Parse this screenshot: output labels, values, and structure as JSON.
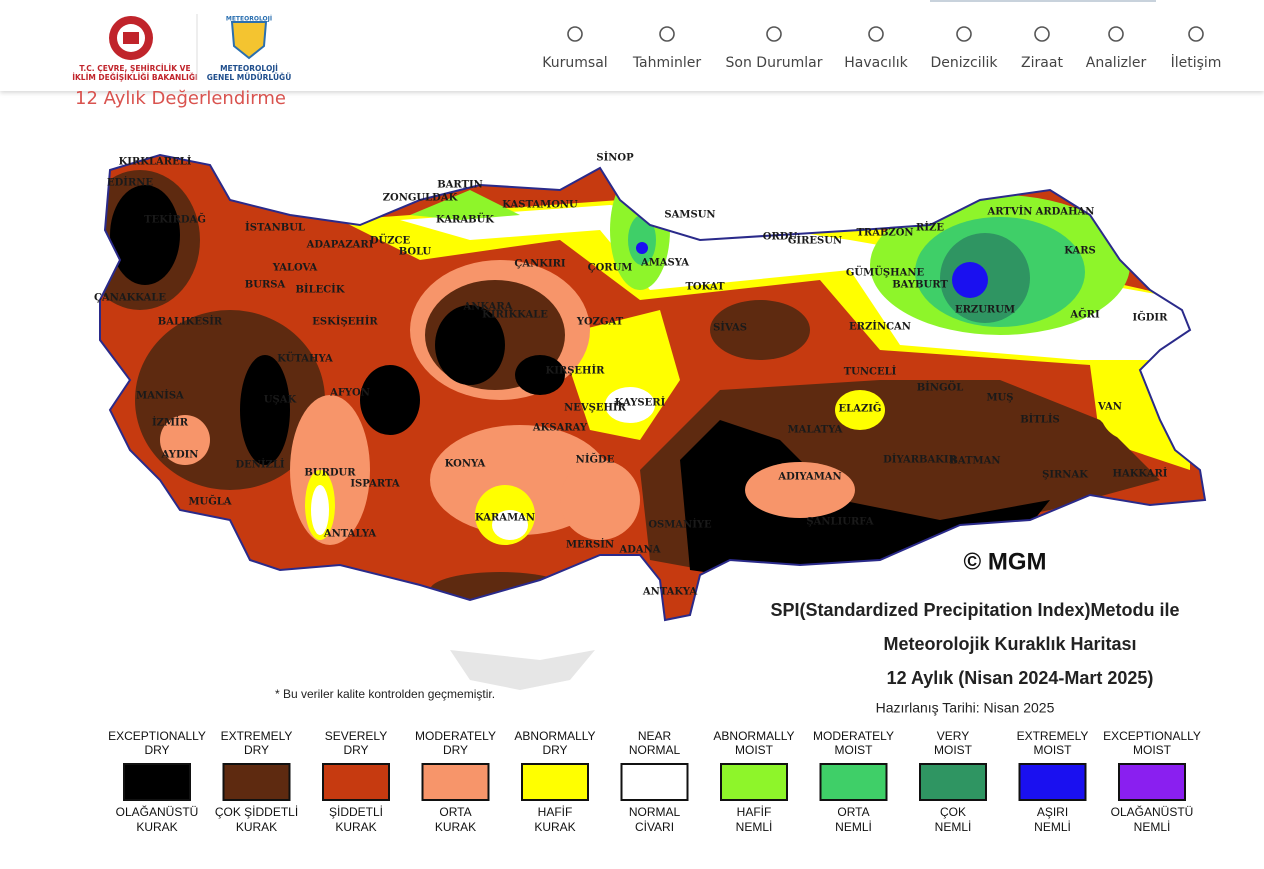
{
  "header": {
    "ministry": [
      "T.C. ÇEVRE, ŞEHİRCİLİK VE",
      "İKLİM DEĞİŞİKLİĞİ BAKANLIĞI"
    ],
    "mgm_logo": "METEOROLOJİ",
    "mgm": [
      "METEOROLOJİ",
      "GENEL MÜDÜRLÜĞÜ"
    ],
    "nav": [
      "Kurumsal",
      "Tahminler",
      "Son Durumlar",
      "Havacılık",
      "Denizcilik",
      "Ziraat",
      "Analizler",
      "İletişim"
    ]
  },
  "page_title": "12 Aylık Değerlendirme",
  "map": {
    "title": [
      "SPI(Standardized Precipitation Index)Metodu ile",
      "Meteorolojik Kuraklık Haritası",
      "12 Aylık (Nisan 2024-Mart 2025)"
    ],
    "date": "Hazırlanış Tarihi: Nisan 2025",
    "copyright": "© MGM",
    "note": "* Bu veriler kalite kontrolden geçmemiştir.",
    "cities": [
      "KIRKLARELİ",
      "EDİRNE",
      "TEKİRDAĞ",
      "İSTANBUL",
      "ZONGULDAK",
      "BARTIN",
      "KARABÜK",
      "KASTAMONU",
      "SİNOP",
      "SAMSUN",
      "ORDU",
      "GİRESUN",
      "TRABZON",
      "RİZE",
      "ARTVİN",
      "ARDAHAN",
      "KARS",
      "DÜZCE",
      "BOLU",
      "ADAPAZARI",
      "YALOVA",
      "BURSA",
      "BİLECİK",
      "ÇANAKKALE",
      "BALIKESİR",
      "ESKİŞEHİR",
      "ANKARA",
      "KIRIKKALE",
      "ÇANKIRI",
      "ÇORUM",
      "AMASYA",
      "TOKAT",
      "GÜMÜŞHANE",
      "BAYBURT",
      "ERZURUM",
      "AĞRI",
      "IĞDIR",
      "ERZİNCAN",
      "SİVAS",
      "YOZGAT",
      "KÜTAHYA",
      "MANİSA",
      "UŞAK",
      "AFYON",
      "KIRŞEHİR",
      "NEVŞEHİR",
      "KAYSERİ",
      "TUNCELİ",
      "BİNGÖL",
      "MUŞ",
      "ELAZIĞ",
      "VAN",
      "BİTLİS",
      "MALATYA",
      "İZMİR",
      "AKSARAY",
      "AYDIN",
      "DENİZLİ",
      "NİĞDE",
      "KONYA",
      "DİYARBAKIR",
      "BATMAN",
      "ŞIRNAK",
      "HAKKARİ",
      "ADIYAMAN",
      "BURDUR",
      "ISPARTA",
      "MUĞLA",
      "KARAMAN",
      "ANTALYA",
      "OSMANİYE",
      "ŞANLIURFA",
      "MERSİN",
      "ADANA",
      "ANTAKYA"
    ]
  },
  "legend": [
    {
      "en": [
        "EXCEPTIONALLY",
        "DRY"
      ],
      "tr": [
        "OLAĞANÜSTÜ",
        "KURAK"
      ],
      "color": "#000000"
    },
    {
      "en": [
        "EXTREMELY",
        "DRY"
      ],
      "tr": [
        "ÇOK ŞİDDETLİ",
        "KURAK"
      ],
      "color": "#5e2a10"
    },
    {
      "en": [
        "SEVERELY",
        "DRY"
      ],
      "tr": [
        "ŞİDDETLİ",
        "KURAK"
      ],
      "color": "#c63a10"
    },
    {
      "en": [
        "MODERATELY",
        "DRY"
      ],
      "tr": [
        "ORTA",
        "KURAK"
      ],
      "color": "#f7956a"
    },
    {
      "en": [
        "ABNORMALLY",
        "DRY"
      ],
      "tr": [
        "HAFİF",
        "KURAK"
      ],
      "color": "#ffff00"
    },
    {
      "en": [
        "NEAR",
        "NORMAL"
      ],
      "tr": [
        "NORMAL",
        "CİVARI"
      ],
      "color": "#ffffff"
    },
    {
      "en": [
        "ABNORMALLY",
        "MOIST"
      ],
      "tr": [
        "HAFİF",
        "NEMLİ"
      ],
      "color": "#8ef52a"
    },
    {
      "en": [
        "MODERATELY",
        "MOIST"
      ],
      "tr": [
        "ORTA",
        "NEMLİ"
      ],
      "color": "#3fcf68"
    },
    {
      "en": [
        "VERY",
        "MOIST"
      ],
      "tr": [
        "ÇOK",
        "NEMLİ"
      ],
      "color": "#2f9562"
    },
    {
      "en": [
        "EXTREMELY",
        "MOIST"
      ],
      "tr": [
        "AŞIRI",
        "NEMLİ"
      ],
      "color": "#1a10f0"
    },
    {
      "en": [
        "EXCEPTIONALLY",
        "MOIST"
      ],
      "tr": [
        "OLAĞANÜSTÜ",
        "NEMLİ"
      ],
      "color": "#8a1ff0"
    }
  ]
}
